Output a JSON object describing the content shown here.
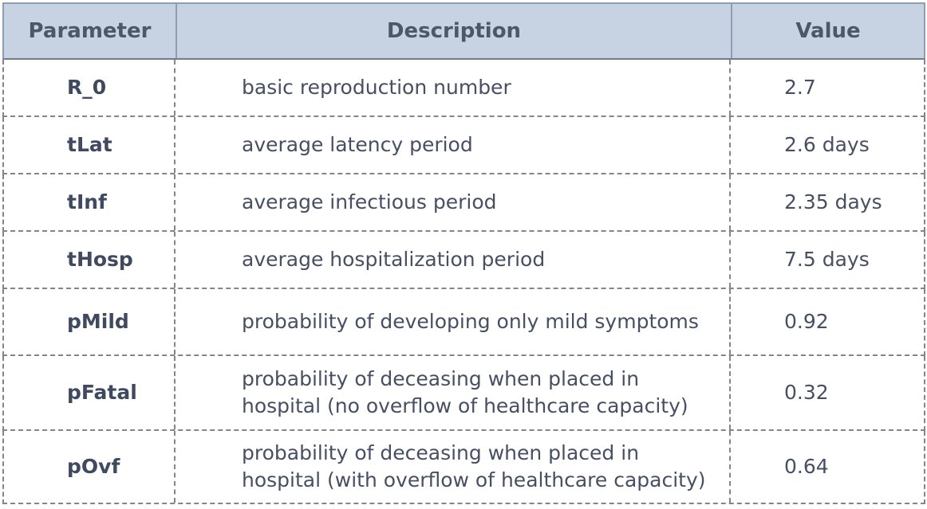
{
  "table": {
    "headers": {
      "parameter": "Parameter",
      "description": "Description",
      "value": "Value"
    },
    "rows": [
      {
        "parameter": "R_0",
        "description": "basic reproduction number",
        "value": "2.7"
      },
      {
        "parameter": "tLat",
        "description": "average latency period",
        "value": "2.6 days"
      },
      {
        "parameter": "tInf",
        "description": "average infectious period",
        "value": "2.35 days"
      },
      {
        "parameter": "tHosp",
        "description": "average hospitalization period",
        "value": "7.5 days"
      },
      {
        "parameter": "pMild",
        "description": "probability of developing only mild symptoms",
        "value": "0.92"
      },
      {
        "parameter": "pFatal",
        "description": "probability of deceasing when placed in hospital (no overflow of healthcare capacity)",
        "value": "0.32"
      },
      {
        "parameter": "pOvf",
        "description": "probability of deceasing when placed in hospital (with overflow of healthcare capacity)",
        "value": "0.64"
      }
    ]
  }
}
